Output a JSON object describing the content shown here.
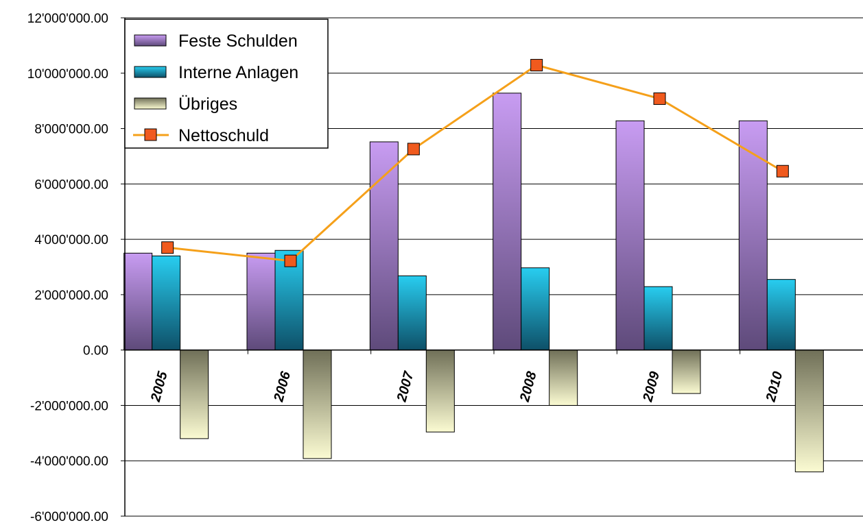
{
  "chart_data": {
    "type": "bar",
    "categories": [
      "2005",
      "2006",
      "2007",
      "2008",
      "2009",
      "2010"
    ],
    "series": [
      {
        "name": "Feste Schulden",
        "type": "bar",
        "values": [
          3500000,
          3500000,
          7520000,
          9280000,
          8280000,
          8280000
        ],
        "color_top": "#c89cf2",
        "color_bottom": "#5e4a7a"
      },
      {
        "name": "Interne Anlagen",
        "type": "bar",
        "values": [
          3400000,
          3600000,
          2680000,
          2970000,
          2290000,
          2550000
        ],
        "color_top": "#28cdf0",
        "color_bottom": "#0e5068"
      },
      {
        "name": "Übriges",
        "type": "bar",
        "values": [
          -3200000,
          -3920000,
          -2960000,
          -2000000,
          -1570000,
          -4400000
        ],
        "color_top": "#707058",
        "color_bottom": "#fbfbd2"
      },
      {
        "name": "Nettoschuld",
        "type": "line",
        "values": [
          3700000,
          3220000,
          7260000,
          10290000,
          9080000,
          6460000
        ],
        "color": "#f5a01a",
        "marker_color": "#f05a1e"
      }
    ],
    "y_ticks": [
      "12'000'000.00",
      "10'000'000.00",
      "8'000'000.00",
      "6'000'000.00",
      "4'000'000.00",
      "2'000'000.00",
      "0.00",
      "-2'000'000.00",
      "-4'000'000.00",
      "-6'000'000.00"
    ],
    "ylim": [
      -6000000,
      12000000
    ],
    "ystep": 2000000,
    "grid": true,
    "legend_position": "top-left",
    "title": "",
    "xlabel": "",
    "ylabel": ""
  }
}
